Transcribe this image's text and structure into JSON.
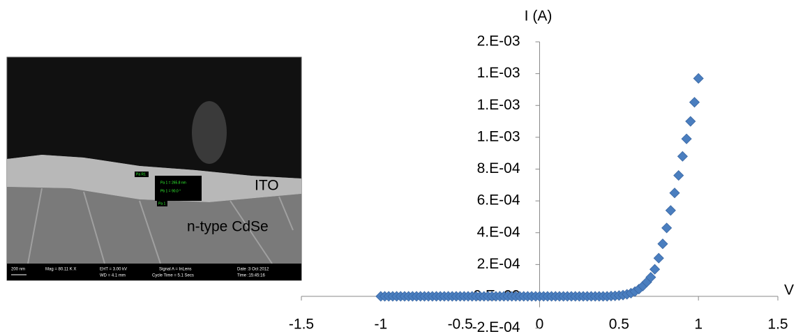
{
  "sem_image": {
    "layer_top": "ITO",
    "layer_bottom": "n-type CdSe",
    "markers": [
      "Pa R1",
      "Pa 1 = 265.8 nm",
      "Pb 1 = 90.0 °",
      "Pa 1"
    ],
    "info": [
      "200 nm",
      "Mag = 80.11 K X",
      "EHT = 3.00 kV",
      "WD = 4.1 mm",
      "Signal A = InLens",
      "Cycle Time = 5.1 Secs",
      "Date :3 Oct 2012",
      "Time :15:45:16"
    ]
  },
  "chart_data": {
    "type": "scatter",
    "x_label": "V",
    "y_label": "I (A)",
    "color": "#4a7ebf",
    "x": [
      -1,
      -0.975,
      -0.95,
      -0.925,
      -0.9,
      -0.875,
      -0.85,
      -0.825,
      -0.8,
      -0.775,
      -0.75,
      -0.725,
      -0.7,
      -0.675,
      -0.65,
      -0.625,
      -0.6,
      -0.575,
      -0.55,
      -0.525,
      -0.5,
      -0.475,
      -0.45,
      -0.425,
      -0.4,
      -0.375,
      -0.35,
      -0.325,
      -0.3,
      -0.275,
      -0.25,
      -0.225,
      -0.2,
      -0.175,
      -0.15,
      -0.125,
      -0.1,
      -0.075,
      -0.05,
      -0.025,
      0,
      0.025,
      0.05,
      0.075,
      0.1,
      0.125,
      0.15,
      0.175,
      0.2,
      0.225,
      0.25,
      0.275,
      0.3,
      0.325,
      0.35,
      0.375,
      0.4,
      0.425,
      0.45,
      0.475,
      0.5,
      0.525,
      0.55,
      0.575,
      0.6,
      0.625,
      0.65,
      0.675,
      0.7,
      0.725,
      0.75,
      0.775,
      0.8,
      0.825,
      0.85,
      0.875,
      0.9,
      0.925,
      0.95,
      0.975,
      1
    ],
    "values": [
      0,
      0,
      0,
      0,
      0,
      0,
      0,
      0,
      0,
      0,
      0,
      0,
      0,
      0,
      0,
      0,
      0,
      0,
      0,
      0,
      0,
      0,
      0,
      0,
      0,
      0,
      0,
      0,
      0,
      0,
      0,
      0,
      0,
      0,
      0,
      0,
      0,
      0,
      0,
      0,
      0,
      0,
      0,
      0,
      0,
      0,
      0,
      0,
      0,
      0,
      0,
      0,
      0,
      0,
      0,
      0,
      0,
      0,
      2e-06,
      3e-06,
      5e-06,
      8e-06,
      1.3e-05,
      2e-05,
      3e-05,
      4.5e-05,
      6.5e-05,
      9e-05,
      0.00012,
      0.00017,
      0.00024,
      0.00033,
      0.00043,
      0.00054,
      0.00065,
      0.00076,
      0.00088,
      0.00099,
      0.0011,
      0.00122,
      0.00137
    ],
    "xlim": [
      -1.5,
      1.5
    ],
    "xticks": [
      -1.5,
      -1,
      -0.5,
      0,
      0.5,
      1,
      1.5
    ],
    "ylim": [
      -0.0002,
      0.0016
    ],
    "yticks": [
      {
        "value": -0.0002,
        "label": "-2.E-04"
      },
      {
        "value": 0,
        "label": "0.E+00"
      },
      {
        "value": 0.0002,
        "label": "2.E-04"
      },
      {
        "value": 0.0004,
        "label": "4.E-04"
      },
      {
        "value": 0.0006,
        "label": "6.E-04"
      },
      {
        "value": 0.0008,
        "label": "8.E-04"
      },
      {
        "value": 0.001,
        "label": "1.E-03"
      },
      {
        "value": 0.0012,
        "label": "1.E-03"
      },
      {
        "value": 0.0014,
        "label": "1.E-03"
      },
      {
        "value": 0.0016,
        "label": "2.E-03"
      }
    ]
  }
}
